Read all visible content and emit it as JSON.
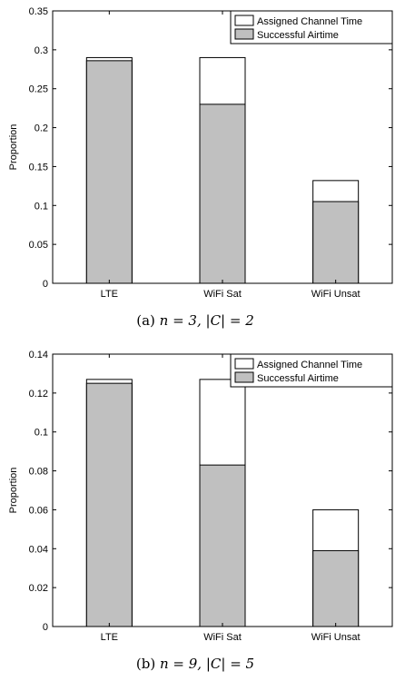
{
  "chart_data": [
    {
      "type": "bar",
      "stacked_overlay": true,
      "caption_label": "(a)",
      "caption_math": "n = 3, |C| = 2",
      "ylabel": "Proportion",
      "xlabel": "",
      "ylim": [
        0,
        0.35
      ],
      "yticks": [
        "0",
        "0.05",
        "0.1",
        "0.15",
        "0.2",
        "0.25",
        "0.3",
        "0.35"
      ],
      "categories": [
        "LTE",
        "WiFi Sat",
        "WiFi Unsat"
      ],
      "series": [
        {
          "name": "Assigned Channel Time",
          "values": [
            0.29,
            0.29,
            0.132
          ],
          "color": "#ffffff"
        },
        {
          "name": "Successful Airtime",
          "values": [
            0.286,
            0.23,
            0.105
          ],
          "color": "#c0c0c0"
        }
      ],
      "legend": "top-right",
      "grid": false
    },
    {
      "type": "bar",
      "stacked_overlay": true,
      "caption_label": "(b)",
      "caption_math": "n = 9, |C| = 5",
      "ylabel": "Proportion",
      "xlabel": "",
      "ylim": [
        0,
        0.14
      ],
      "yticks": [
        "0",
        "0.02",
        "0.04",
        "0.06",
        "0.08",
        "0.1",
        "0.12",
        "0.14"
      ],
      "categories": [
        "LTE",
        "WiFi Sat",
        "WiFi Unsat"
      ],
      "series": [
        {
          "name": "Assigned Channel Time",
          "values": [
            0.127,
            0.127,
            0.06
          ],
          "color": "#ffffff"
        },
        {
          "name": "Successful Airtime",
          "values": [
            0.125,
            0.083,
            0.039
          ],
          "color": "#c0c0c0"
        }
      ],
      "legend": "top-right",
      "grid": false
    }
  ]
}
